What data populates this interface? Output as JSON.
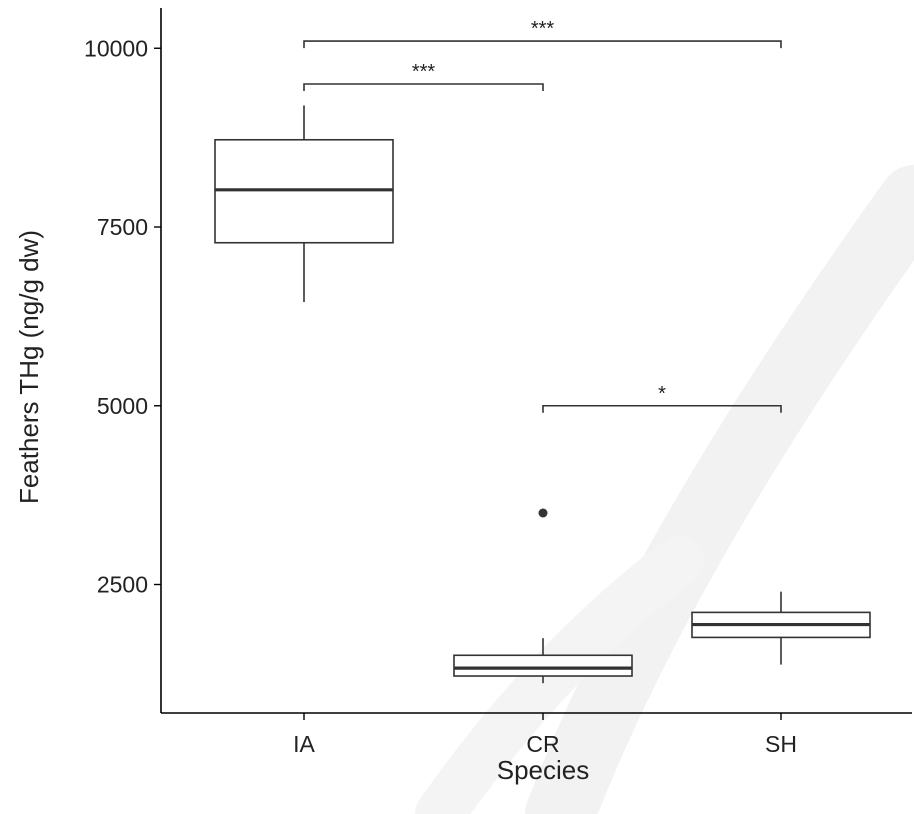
{
  "chart_data": {
    "type": "box",
    "xlabel": "Species",
    "ylabel": "Feathers THg (ng/g dw)",
    "categories": [
      "IA",
      "CR",
      "SH"
    ],
    "ylim": [
      700,
      10500
    ],
    "yticks": [
      2500,
      5000,
      7500,
      10000
    ],
    "ytick_labels": [
      "2500",
      "5000",
      "7500",
      "10000"
    ],
    "grid": false,
    "boxes": [
      {
        "category": "IA",
        "whisker_low": 6450,
        "q1": 7280,
        "median": 8020,
        "q3": 8720,
        "whisker_high": 9200,
        "outliers": []
      },
      {
        "category": "CR",
        "whisker_low": 1120,
        "q1": 1220,
        "median": 1330,
        "q3": 1510,
        "whisker_high": 1750,
        "outliers": [
          3500
        ]
      },
      {
        "category": "SH",
        "whisker_low": 1380,
        "q1": 1760,
        "median": 1940,
        "q3": 2110,
        "whisker_high": 2400,
        "outliers": []
      }
    ],
    "significance": [
      {
        "from": "IA",
        "to": "SH",
        "y": 10100,
        "label": "***"
      },
      {
        "from": "IA",
        "to": "CR",
        "y": 9500,
        "label": "***"
      },
      {
        "from": "CR",
        "to": "SH",
        "y": 5000,
        "label": "*"
      }
    ],
    "colors": {
      "box_fill": "#ffffff",
      "stroke": "#333333",
      "axis": "#000000",
      "text": "#222222"
    }
  }
}
